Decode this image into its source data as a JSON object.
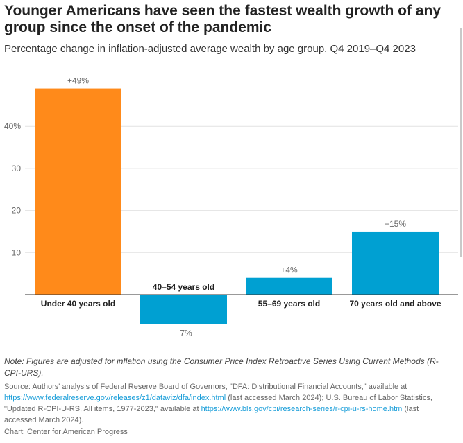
{
  "title": "Younger Americans have seen the fastest wealth growth of any group since the onset of the pandemic",
  "subtitle": "Percentage change in inflation-adjusted average wealth by age group, Q4 2019–Q4 2023",
  "note": "Note: Figures are adjusted for inflation using the Consumer Price Index Retroactive Series Using Current Methods (R-CPI-URS).",
  "source": {
    "prefix": "Source: Authors' analysis of Federal Reserve Board of Governors, \"DFA: Distributional Financial Accounts,\" available at ",
    "link1": "https://www.federalreserve.gov/releases/z1/dataviz/dfa/index.html",
    "middle": " (last accessed March 2024); U.S. Bureau of Labor Statistics, \"Updated R-CPI-U-RS, All items, 1977-2023,\" available at ",
    "link2": "https://www.bls.gov/cpi/research-series/r-cpi-u-rs-home.htm",
    "suffix": " (last accessed March 2024)."
  },
  "credit": "Chart: Center for American Progress",
  "chart_data": {
    "type": "bar",
    "categories": [
      "Under 40 years old",
      "40–54 years old",
      "55–69 years old",
      "70 years old and above"
    ],
    "values": [
      49,
      -7,
      4,
      15
    ],
    "data_labels": [
      "+49%",
      "−7%",
      "+4%",
      "+15%"
    ],
    "colors": [
      "#ff8a1a",
      "#00a0d2",
      "#00a0d2",
      "#00a0d2"
    ],
    "yticks": [
      10,
      20,
      30,
      40
    ],
    "ytick_labels": [
      "10",
      "20",
      "30",
      "40%"
    ],
    "ylim": [
      -9,
      52
    ],
    "grid": true
  }
}
